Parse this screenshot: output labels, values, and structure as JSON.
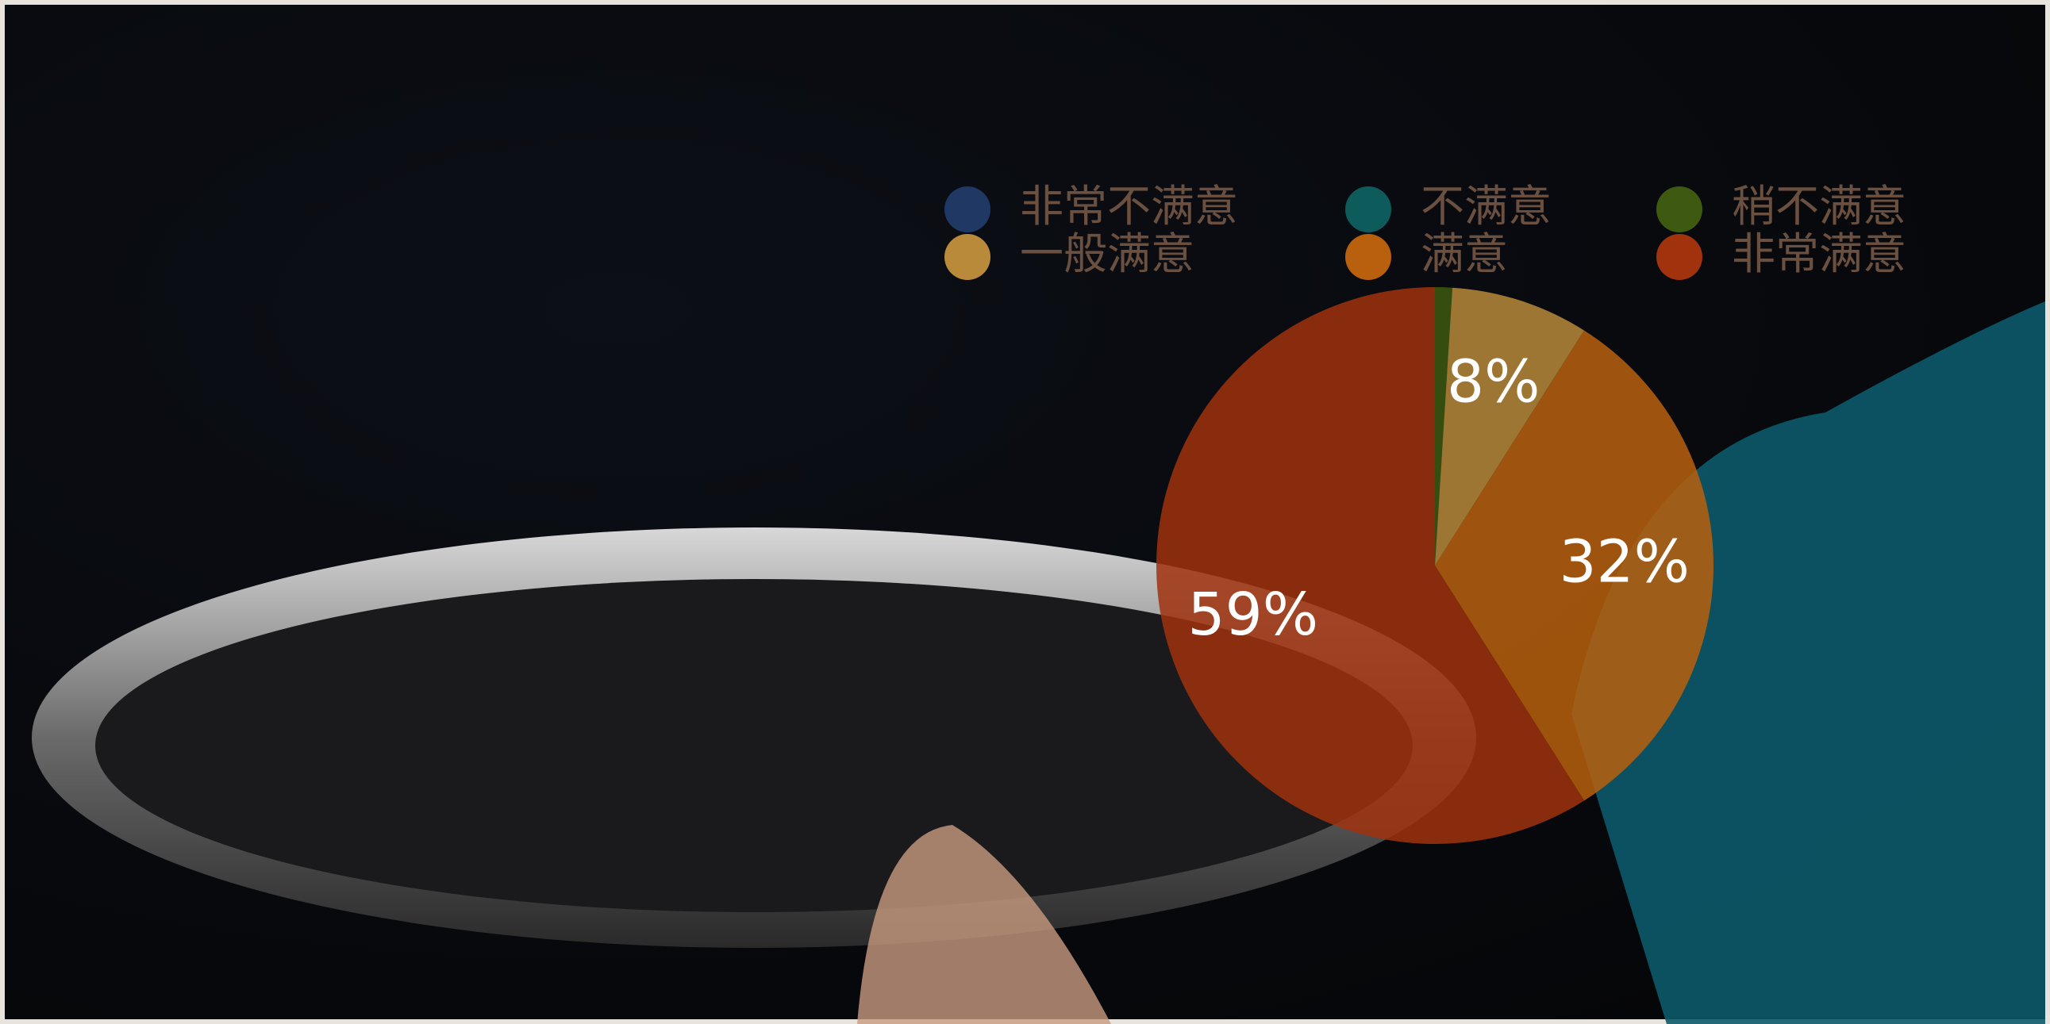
{
  "chart_data": {
    "type": "pie",
    "categories": [
      "非常不满意",
      "不满意",
      "稍不满意",
      "一般满意",
      "满意",
      "非常满意"
    ],
    "values": [
      0,
      0,
      1,
      8,
      32,
      59
    ],
    "value_labels": [
      null,
      null,
      null,
      "8%",
      "32%",
      "59%"
    ],
    "colors": [
      "#1f3864",
      "#0e5b5b",
      "#3d5a10",
      "#b88a3a",
      "#b8600e",
      "#a0320e"
    ],
    "legend": "top"
  }
}
